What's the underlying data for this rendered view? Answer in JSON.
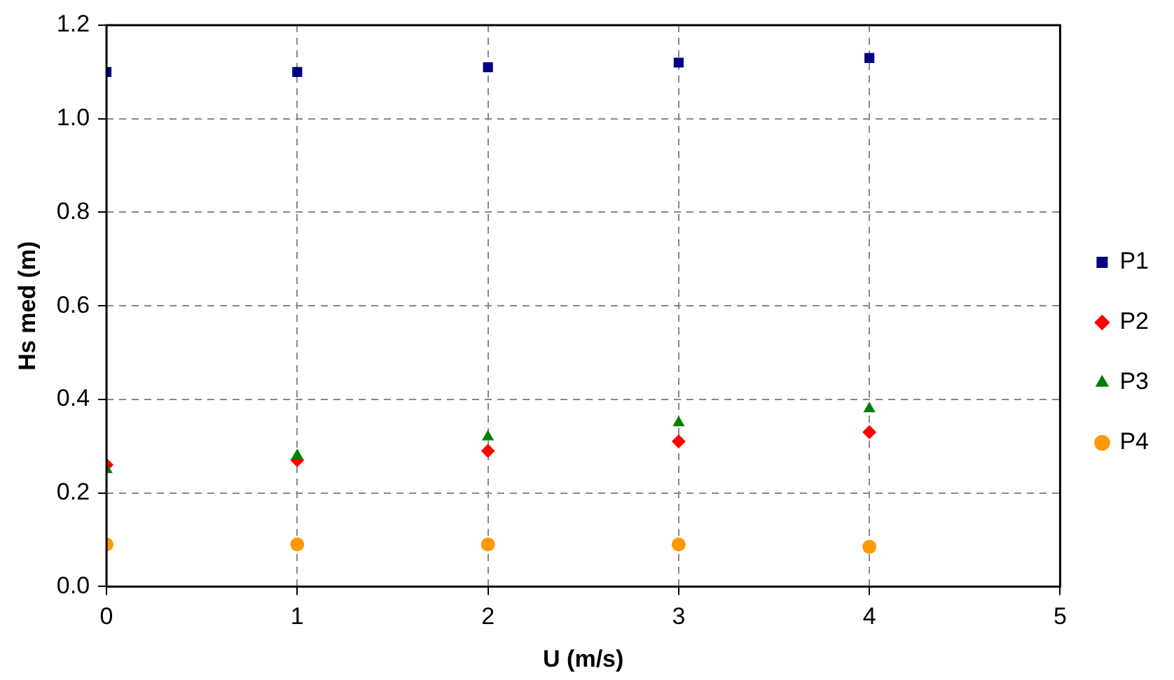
{
  "chart_data": {
    "type": "scatter",
    "xlabel": "U (m/s)",
    "ylabel": "Hs med (m)",
    "x": [
      0,
      1,
      2,
      3,
      4
    ],
    "series": [
      {
        "name": "P1",
        "color": "#000080",
        "marker": "square",
        "values": [
          1.1,
          1.1,
          1.11,
          1.12,
          1.13
        ]
      },
      {
        "name": "P2",
        "color": "#ff0000",
        "marker": "diamond",
        "values": [
          0.26,
          0.27,
          0.29,
          0.31,
          0.33
        ]
      },
      {
        "name": "P3",
        "color": "#008000",
        "marker": "triangle",
        "values": [
          0.25,
          0.28,
          0.32,
          0.35,
          0.38
        ]
      },
      {
        "name": "P4",
        "color": "#ff9900",
        "marker": "circle",
        "values": [
          0.09,
          0.09,
          0.09,
          0.09,
          0.085
        ]
      }
    ],
    "xlim": [
      0,
      5
    ],
    "xticks": [
      0,
      1,
      2,
      3,
      4,
      5
    ],
    "ylim": [
      0,
      1.2
    ],
    "yticks": [
      {
        "value": 0,
        "label": "0.0"
      },
      {
        "value": 0.2,
        "label": "0.2"
      },
      {
        "value": 0.4,
        "label": "0.4"
      },
      {
        "value": 0.6,
        "label": "0.6"
      },
      {
        "value": 0.8,
        "label": "0.8"
      },
      {
        "value": 1.0,
        "label": "1.0"
      },
      {
        "value": 1.2,
        "label": "1.2"
      }
    ],
    "grid": true,
    "legend": "right"
  }
}
